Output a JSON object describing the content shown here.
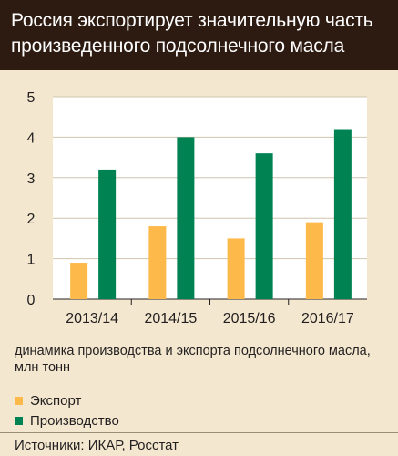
{
  "title": "Россия экспортирует значительную часть произведенного подсолнечного масла",
  "chart_data": {
    "type": "bar",
    "categories": [
      "2013/14",
      "2014/15",
      "2015/16",
      "2016/17"
    ],
    "series": [
      {
        "name": "Экспорт",
        "values": [
          0.9,
          1.8,
          1.5,
          1.9
        ],
        "color": "#fdb94a"
      },
      {
        "name": "Производство",
        "values": [
          3.2,
          4.0,
          3.6,
          4.2
        ],
        "color": "#008252"
      }
    ],
    "yticks": [
      0,
      1,
      2,
      3,
      4,
      5
    ],
    "ylim": [
      0,
      5
    ],
    "grid": true,
    "legend_position": "bottom"
  },
  "caption": "динамика производства и экспорта подсолнечного масла, млн тонн",
  "source": "Источники: ИКАР, Росстат"
}
